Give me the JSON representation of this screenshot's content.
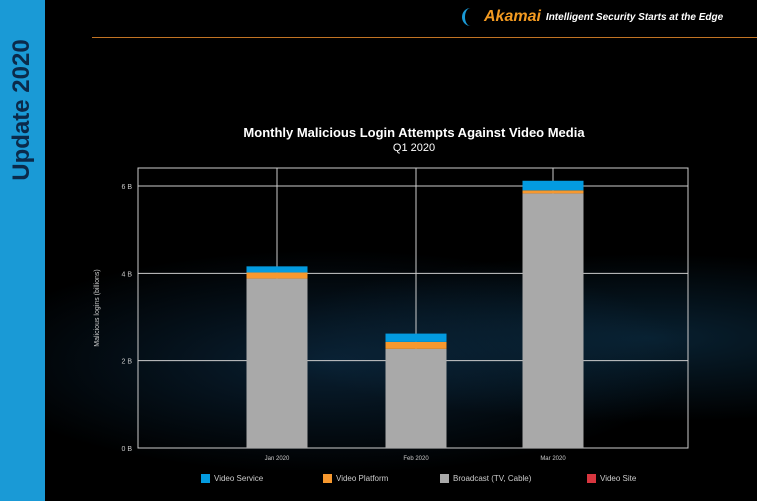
{
  "sidebar": {
    "title": "Update 2020"
  },
  "header": {
    "brand": "Akamai",
    "tagline": "Intelligent Security Starts at the Edge"
  },
  "colors": {
    "sidebar": "#1a9ad6",
    "brand": "#f39a21"
  },
  "chart_data": {
    "type": "bar",
    "stacked": true,
    "title": "Monthly Malicious Login Attempts Against Video Media",
    "subtitle": "Q1 2020",
    "xlabel": "",
    "ylabel": "Malicious logins (billions)",
    "ylim": [
      0,
      6.4
    ],
    "yticks": [
      {
        "v": 0,
        "label": "0 B"
      },
      {
        "v": 2,
        "label": "2 B"
      },
      {
        "v": 4,
        "label": "4 B"
      },
      {
        "v": 6,
        "label": "6 B"
      }
    ],
    "grid": true,
    "legend_position": "bottom",
    "categories": [
      "Jan 2020",
      "Feb 2020",
      "Mar 2020"
    ],
    "series": [
      {
        "name": "Broadcast (TV, Cable)",
        "color": "#a9a9a9",
        "values": [
          3.88,
          2.27,
          5.83
        ]
      },
      {
        "name": "Video Platform",
        "color": "#f7982e",
        "values": [
          0.14,
          0.16,
          0.07
        ]
      },
      {
        "name": "Video Service",
        "color": "#039be0",
        "values": [
          0.14,
          0.19,
          0.22
        ]
      },
      {
        "name": "Video Site",
        "color": "#d8363f",
        "values": [
          0,
          0,
          0
        ]
      }
    ],
    "legend_order": [
      2,
      1,
      0,
      3
    ]
  }
}
